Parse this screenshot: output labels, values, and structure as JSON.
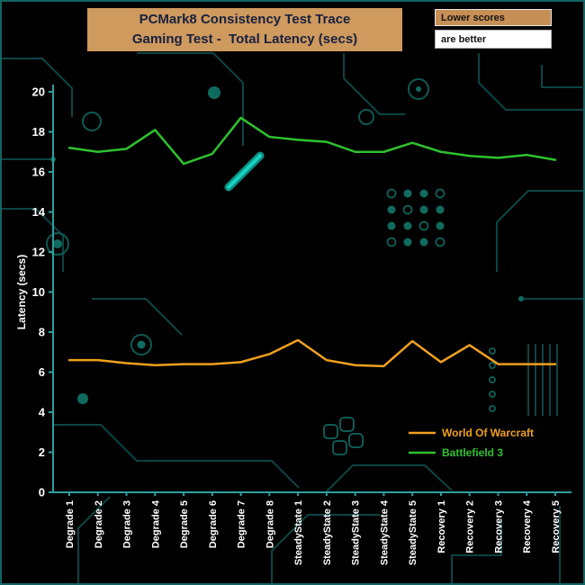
{
  "window": {
    "background": "#000000",
    "border_color": "#156363"
  },
  "header": {
    "title_line1": "PCMark8 Consistency Test Trace",
    "title_line2": "Gaming Test -  Total Latency (secs)"
  },
  "note": {
    "line1": "Lower scores",
    "line2": "are better"
  },
  "chart_data": {
    "type": "line",
    "title": "PCMark8 Consistency Test Trace — Gaming Test - Total Latency (secs)",
    "xlabel": "",
    "ylabel": "Latency (secs)",
    "ylim": [
      0,
      20
    ],
    "ytick_step": 2,
    "grid": false,
    "legend_position": "inside-right-bottom",
    "axis_color": "#2f9e9e",
    "tick_label_color": "#ffffff",
    "categories": [
      "Degrade 1",
      "Degrade 2",
      "Degrade 3",
      "Degrade 4",
      "Degrade 5",
      "Degrade 6",
      "Degrade 7",
      "Degrade 8",
      "SteadyState 1",
      "SteadyState 2",
      "SteadyState 3",
      "SteadyState 4",
      "SteadyState 5",
      "Recovery 1",
      "Recovery 2",
      "Recovery 3",
      "Recovery 4",
      "Recovery 5"
    ],
    "series": [
      {
        "name": "World Of Warcraft",
        "color": "#f0a01e",
        "values": [
          6.6,
          6.6,
          6.45,
          6.35,
          6.4,
          6.4,
          6.5,
          6.9,
          7.6,
          6.6,
          6.35,
          6.3,
          7.55,
          6.5,
          7.35,
          6.4,
          6.4,
          6.4
        ]
      },
      {
        "name": "Battlefield 3",
        "color": "#2ec22e",
        "values": [
          17.2,
          17.0,
          17.15,
          18.1,
          16.4,
          16.9,
          18.7,
          17.75,
          17.6,
          17.5,
          17.0,
          17.0,
          17.45,
          17.0,
          16.8,
          16.7,
          16.85,
          16.6
        ]
      }
    ]
  }
}
